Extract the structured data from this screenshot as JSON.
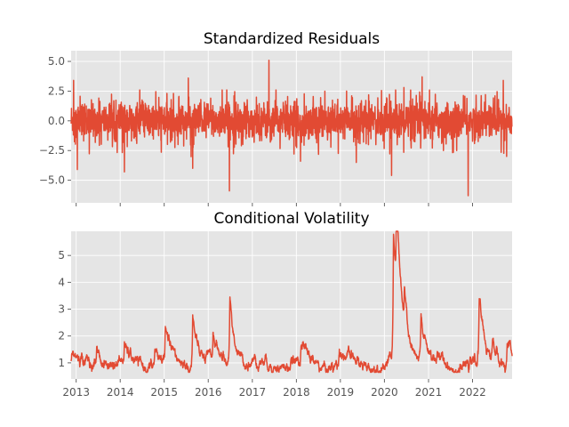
{
  "chart_data": [
    {
      "type": "line",
      "title": "Standardized Residuals",
      "xlabel": "",
      "ylabel": "",
      "xlim": [
        "2012-11-20",
        "2022-11-25"
      ],
      "ylim": [
        -6.9,
        5.9
      ],
      "yticks": [
        5.0,
        2.5,
        0.0,
        -2.5,
        -5.0
      ],
      "ytick_labels": [
        "5.0",
        "2.5",
        "0.0",
        "−2.5",
        "−5.0"
      ],
      "grid": true,
      "series": [
        {
          "color": "#E24A33",
          "kind": "noise-around-zero",
          "spikes": [
            {
              "x": "2012-12-10",
              "y": 3.4
            },
            {
              "x": "2013-01-10",
              "y": -4.1
            },
            {
              "x": "2014-02-05",
              "y": -4.3
            },
            {
              "x": "2015-07-20",
              "y": 3.6
            },
            {
              "x": "2015-08-25",
              "y": -4.0
            },
            {
              "x": "2016-06-24",
              "y": -5.9
            },
            {
              "x": "2017-05-18",
              "y": 5.1
            },
            {
              "x": "2018-02-05",
              "y": -3.4
            },
            {
              "x": "2019-05-13",
              "y": -3.5
            },
            {
              "x": "2020-03-01",
              "y": -4.6
            },
            {
              "x": "2020-06-11",
              "y": 2.8
            },
            {
              "x": "2020-11-09",
              "y": 3.7
            },
            {
              "x": "2021-11-26",
              "y": -6.3
            },
            {
              "x": "2022-09-13",
              "y": 3.4
            },
            {
              "x": "2022-10-10",
              "y": -3.0
            }
          ]
        }
      ]
    },
    {
      "type": "line",
      "title": "Conditional Volatility",
      "xlabel": "",
      "ylabel": "",
      "xlim": [
        "2012-11-20",
        "2022-11-25"
      ],
      "ylim": [
        0.4,
        5.9
      ],
      "yticks": [
        5,
        4,
        3,
        2,
        1
      ],
      "ytick_labels": [
        "5",
        "4",
        "3",
        "2",
        "1"
      ],
      "xticks": [
        "2013",
        "2014",
        "2015",
        "2016",
        "2017",
        "2018",
        "2019",
        "2020",
        "2021",
        "2022"
      ],
      "grid": true,
      "series": [
        {
          "color": "#E24A33",
          "kind": "volatility",
          "peaks": [
            {
              "x": "2012-11-25",
              "y": 1.4
            },
            {
              "x": "2013-06-20",
              "y": 1.7
            },
            {
              "x": "2014-02-05",
              "y": 1.5
            },
            {
              "x": "2014-10-15",
              "y": 1.6
            },
            {
              "x": "2015-01-10",
              "y": 2.1
            },
            {
              "x": "2015-08-25",
              "y": 2.9
            },
            {
              "x": "2016-02-10",
              "y": 2.0
            },
            {
              "x": "2016-06-28",
              "y": 3.6
            },
            {
              "x": "2018-02-08",
              "y": 1.8
            },
            {
              "x": "2018-12-24",
              "y": 1.6
            },
            {
              "x": "2020-03-16",
              "y": 5.7
            },
            {
              "x": "2020-04-10",
              "y": 5.0
            },
            {
              "x": "2020-06-15",
              "y": 2.3
            },
            {
              "x": "2020-10-30",
              "y": 2.7
            },
            {
              "x": "2022-02-25",
              "y": 3.4
            },
            {
              "x": "2022-06-16",
              "y": 1.8
            },
            {
              "x": "2022-10-15",
              "y": 1.9
            }
          ]
        }
      ]
    }
  ]
}
